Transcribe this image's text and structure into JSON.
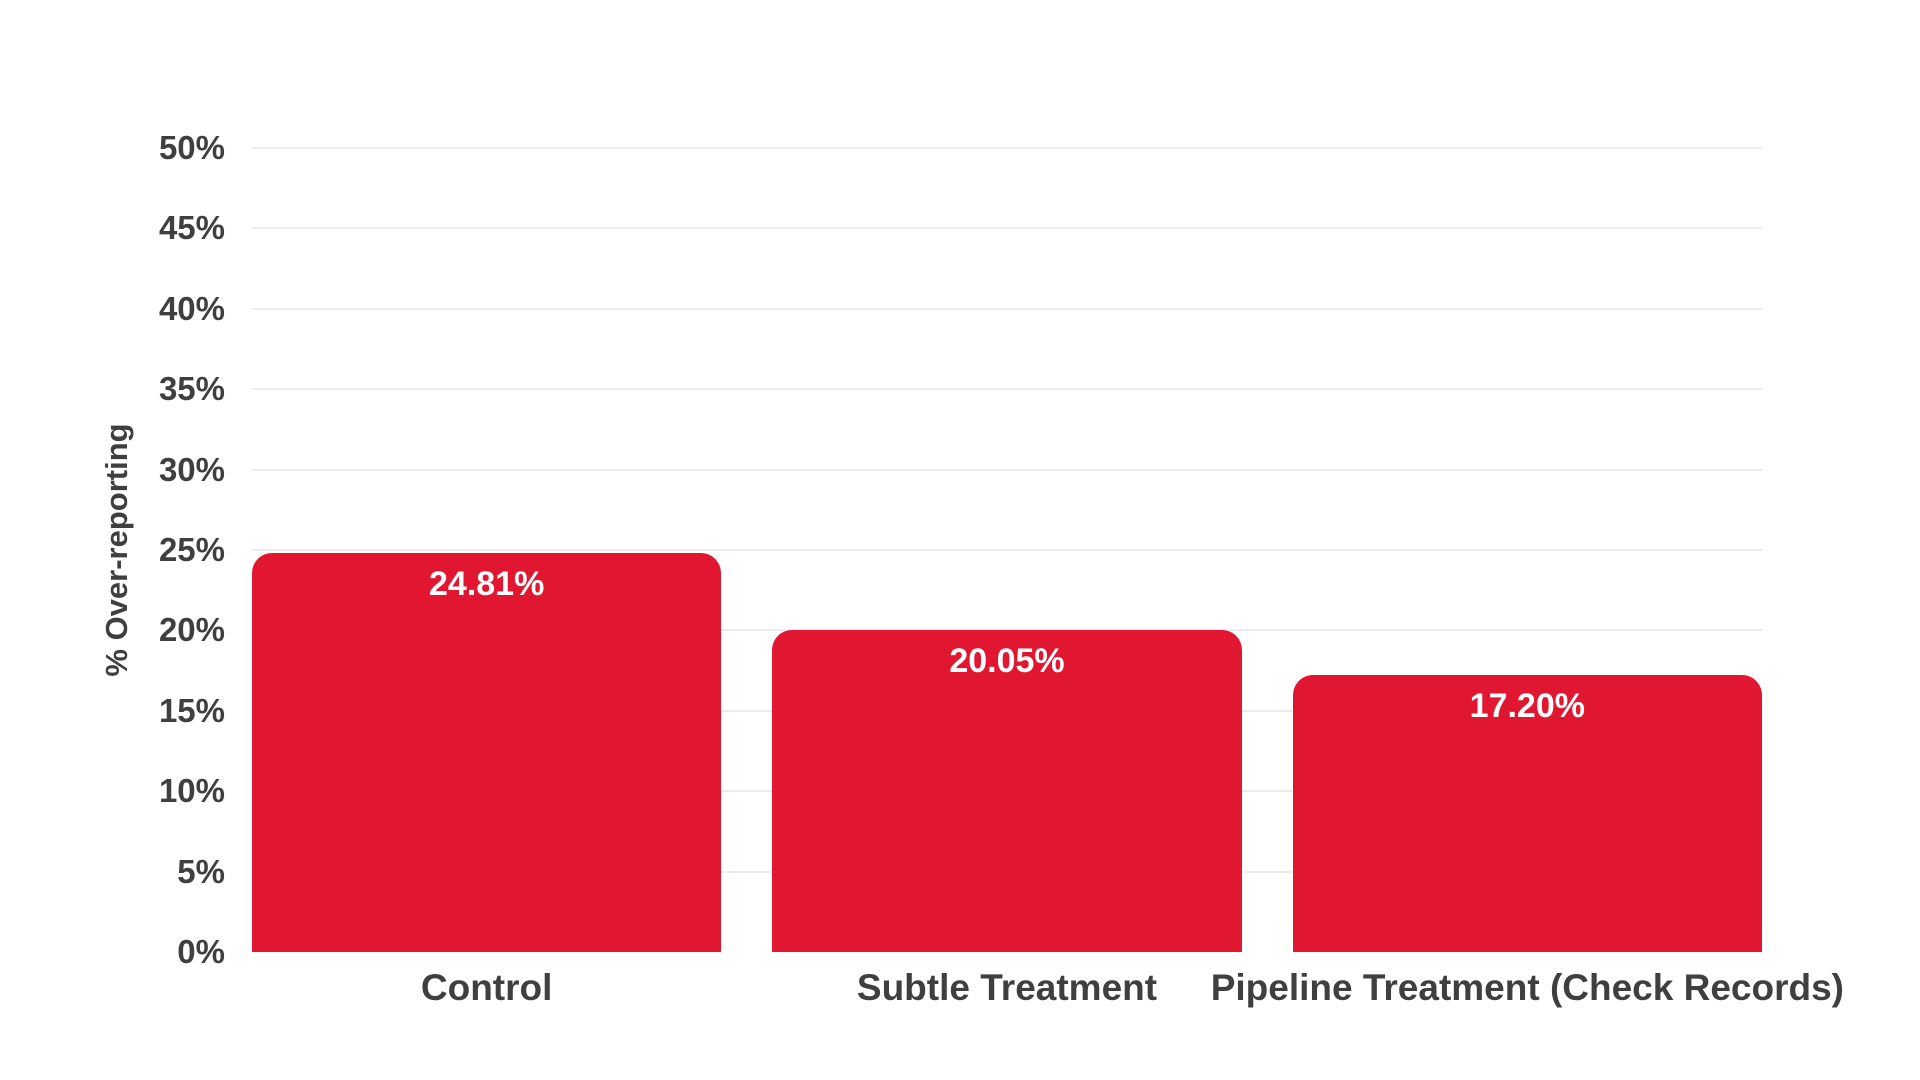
{
  "chart_data": {
    "type": "bar",
    "title": "",
    "categories": [
      "Control",
      "Subtle Treatment",
      "Pipeline Treatment (Check Records)"
    ],
    "values": [
      24.81,
      20.05,
      17.2
    ],
    "value_labels": [
      "24.81%",
      "20.05%",
      "17.20%"
    ],
    "xlabel": "",
    "ylabel": "% Over-reporting",
    "ylim": [
      0,
      50
    ],
    "ytick_step": 5,
    "ytick_suffix": "%",
    "ytick_labels": [
      "0%",
      "5%",
      "10%",
      "15%",
      "20%",
      "25%",
      "30%",
      "35%",
      "40%",
      "45%",
      "50%"
    ],
    "grid": true,
    "legend": false,
    "colors": {
      "bar": "#E11732",
      "value_label": "#FFFFFF",
      "axis_text": "#3F3F3F",
      "gridline": "#ECECEC",
      "background": "#FFFFFF"
    }
  }
}
